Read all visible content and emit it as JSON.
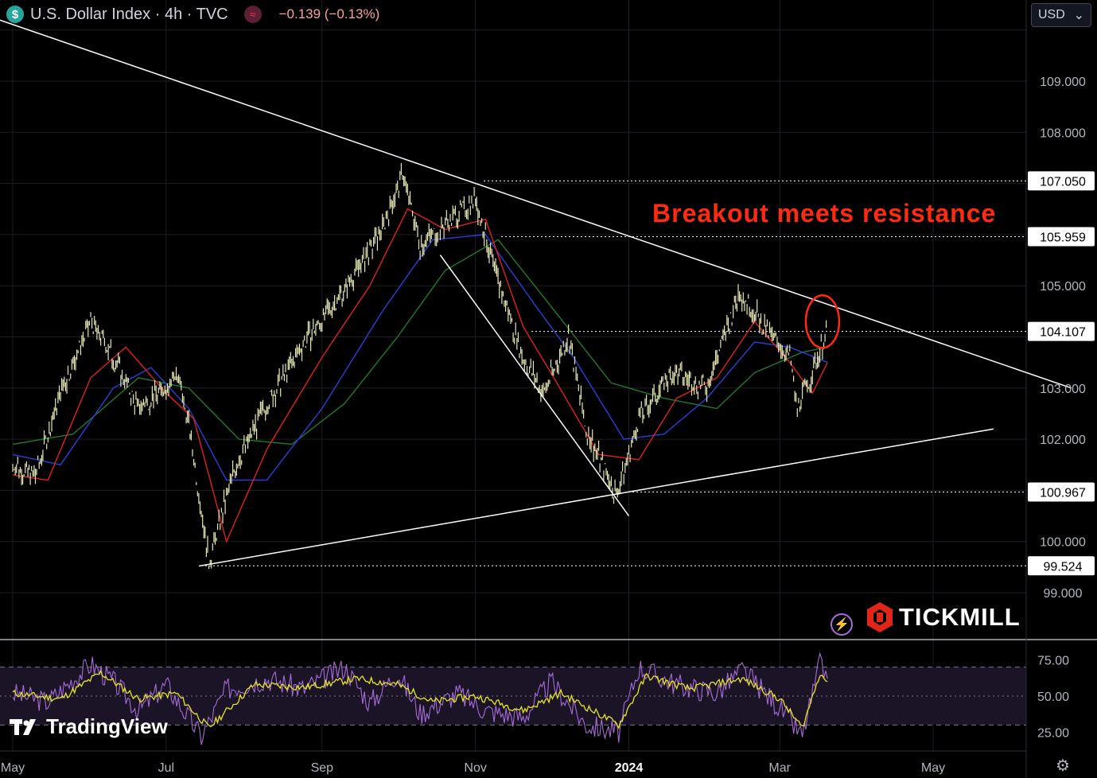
{
  "header": {
    "title": "U.S. Dollar Index · 4h · TVC",
    "currency_icon": "$",
    "indicator_icon": "≈",
    "change": "−0.139 (−0.13%)",
    "currency_select": "USD"
  },
  "annotation": "Breakout meets resistance",
  "brand": {
    "name": "TICKMILL",
    "logo": "tickmill-logo-icon"
  },
  "watermark": "TradingView",
  "colors": {
    "background": "#000000",
    "price_candles": "#e6e8b0",
    "ma_fast": "#e02020",
    "ma_mid": "#2a3fd8",
    "ma_slow": "#1f7a2a",
    "trendline": "#ffffff",
    "rsi": "#a56bd6",
    "rsi_signal": "#e6e61a",
    "annotation": "#ff2a0f",
    "circle": "#ff2a0f"
  },
  "chart_data": {
    "type": "line",
    "x_tick_labels": [
      "May",
      "Jul",
      "Sep",
      "Nov",
      "2024",
      "Mar",
      "May"
    ],
    "y_tick_labels": [
      "109.000",
      "108.000",
      "105.000",
      "103.000",
      "102.000",
      "100.000",
      "99.000"
    ],
    "price_labels": [
      "107.050",
      "105.959",
      "104.107",
      "100.967",
      "99.524"
    ],
    "ylim": [
      98.2,
      110.5
    ],
    "rsi_tick_labels": [
      "75.00",
      "50.00",
      "25.00"
    ],
    "rsi_ylim": [
      12,
      88
    ],
    "series": [
      {
        "kind": "price",
        "points": [
          [
            "2023-05-01",
            101.5
          ],
          [
            "2023-05-10",
            101.3
          ],
          [
            "2023-05-20",
            102.9
          ],
          [
            "2023-06-01",
            104.3
          ],
          [
            "2023-06-10",
            103.6
          ],
          [
            "2023-06-20",
            102.6
          ],
          [
            "2023-06-30",
            103.0
          ],
          [
            "2023-07-05",
            103.3
          ],
          [
            "2023-07-10",
            102.3
          ],
          [
            "2023-07-18",
            99.6
          ],
          [
            "2023-07-28",
            101.4
          ],
          [
            "2023-08-08",
            102.5
          ],
          [
            "2023-08-25",
            103.9
          ],
          [
            "2023-09-05",
            104.6
          ],
          [
            "2023-09-15",
            105.3
          ],
          [
            "2023-09-25",
            106.1
          ],
          [
            "2023-10-03",
            107.2
          ],
          [
            "2023-10-10",
            105.8
          ],
          [
            "2023-10-20",
            106.2
          ],
          [
            "2023-11-01",
            106.7
          ],
          [
            "2023-11-08",
            105.4
          ],
          [
            "2023-11-20",
            103.6
          ],
          [
            "2023-11-28",
            102.9
          ],
          [
            "2023-12-08",
            104.0
          ],
          [
            "2023-12-15",
            102.2
          ],
          [
            "2023-12-27",
            100.9
          ],
          [
            "2024-01-05",
            102.4
          ],
          [
            "2024-01-18",
            103.3
          ],
          [
            "2024-02-01",
            103.0
          ],
          [
            "2024-02-14",
            104.9
          ],
          [
            "2024-02-25",
            104.1
          ],
          [
            "2024-03-05",
            103.6
          ],
          [
            "2024-03-08",
            102.6
          ],
          [
            "2024-03-14",
            103.3
          ],
          [
            "2024-03-20",
            104.1
          ]
        ]
      },
      {
        "kind": "ma_fast",
        "points": [
          [
            "2023-05-01",
            101.3
          ],
          [
            "2023-05-15",
            101.2
          ],
          [
            "2023-06-01",
            103.2
          ],
          [
            "2023-06-15",
            103.8
          ],
          [
            "2023-07-01",
            102.9
          ],
          [
            "2023-07-12",
            102.4
          ],
          [
            "2023-07-25",
            100.0
          ],
          [
            "2023-08-10",
            101.8
          ],
          [
            "2023-09-01",
            103.6
          ],
          [
            "2023-09-20",
            105.0
          ],
          [
            "2023-10-05",
            106.5
          ],
          [
            "2023-10-20",
            106.1
          ],
          [
            "2023-11-05",
            106.3
          ],
          [
            "2023-11-20",
            104.2
          ],
          [
            "2023-12-01",
            103.3
          ],
          [
            "2023-12-20",
            101.7
          ],
          [
            "2024-01-05",
            101.6
          ],
          [
            "2024-01-20",
            102.8
          ],
          [
            "2024-02-05",
            103.2
          ],
          [
            "2024-02-20",
            104.3
          ],
          [
            "2024-03-05",
            103.5
          ],
          [
            "2024-03-14",
            102.9
          ],
          [
            "2024-03-20",
            103.5
          ]
        ]
      },
      {
        "kind": "ma_mid",
        "points": [
          [
            "2023-05-01",
            101.7
          ],
          [
            "2023-05-20",
            101.5
          ],
          [
            "2023-06-10",
            103.0
          ],
          [
            "2023-06-25",
            103.4
          ],
          [
            "2023-07-10",
            102.6
          ],
          [
            "2023-07-25",
            101.2
          ],
          [
            "2023-08-10",
            101.2
          ],
          [
            "2023-09-01",
            102.6
          ],
          [
            "2023-09-25",
            104.5
          ],
          [
            "2023-10-15",
            105.9
          ],
          [
            "2023-11-05",
            106.0
          ],
          [
            "2023-11-25",
            104.6
          ],
          [
            "2023-12-10",
            103.6
          ],
          [
            "2023-12-30",
            102.0
          ],
          [
            "2024-01-15",
            102.1
          ],
          [
            "2024-02-01",
            102.8
          ],
          [
            "2024-02-20",
            103.9
          ],
          [
            "2024-03-05",
            103.8
          ],
          [
            "2024-03-20",
            103.5
          ]
        ]
      },
      {
        "kind": "ma_slow",
        "points": [
          [
            "2023-05-01",
            101.9
          ],
          [
            "2023-05-25",
            102.1
          ],
          [
            "2023-06-20",
            103.2
          ],
          [
            "2023-07-10",
            103.0
          ],
          [
            "2023-07-30",
            102.0
          ],
          [
            "2023-08-20",
            101.9
          ],
          [
            "2023-09-10",
            102.7
          ],
          [
            "2023-10-01",
            104.0
          ],
          [
            "2023-10-20",
            105.3
          ],
          [
            "2023-11-10",
            105.9
          ],
          [
            "2023-12-01",
            104.6
          ],
          [
            "2023-12-25",
            103.1
          ],
          [
            "2024-01-15",
            102.8
          ],
          [
            "2024-02-05",
            102.6
          ],
          [
            "2024-02-20",
            103.3
          ],
          [
            "2024-03-10",
            103.7
          ],
          [
            "2024-03-20",
            103.8
          ]
        ]
      },
      {
        "kind": "rsi",
        "points": [
          [
            "2023-05-01",
            52
          ],
          [
            "2023-05-15",
            46
          ],
          [
            "2023-06-01",
            72
          ],
          [
            "2023-06-10",
            60
          ],
          [
            "2023-06-20",
            40
          ],
          [
            "2023-07-01",
            58
          ],
          [
            "2023-07-15",
            22
          ],
          [
            "2023-07-25",
            55
          ],
          [
            "2023-08-10",
            62
          ],
          [
            "2023-08-25",
            55
          ],
          [
            "2023-09-10",
            70
          ],
          [
            "2023-09-20",
            45
          ],
          [
            "2023-10-01",
            66
          ],
          [
            "2023-10-10",
            38
          ],
          [
            "2023-10-25",
            52
          ],
          [
            "2023-11-05",
            40
          ],
          [
            "2023-11-20",
            35
          ],
          [
            "2023-12-01",
            60
          ],
          [
            "2023-12-15",
            30
          ],
          [
            "2023-12-28",
            25
          ],
          [
            "2024-01-05",
            70
          ],
          [
            "2024-01-20",
            58
          ],
          [
            "2024-02-05",
            52
          ],
          [
            "2024-02-15",
            68
          ],
          [
            "2024-03-01",
            42
          ],
          [
            "2024-03-10",
            22
          ],
          [
            "2024-03-17",
            72
          ],
          [
            "2024-03-20",
            62
          ]
        ]
      },
      {
        "kind": "rsi_signal",
        "points": [
          [
            "2023-05-01",
            52
          ],
          [
            "2023-05-20",
            48
          ],
          [
            "2023-06-05",
            66
          ],
          [
            "2023-06-20",
            48
          ],
          [
            "2023-07-05",
            52
          ],
          [
            "2023-07-18",
            28
          ],
          [
            "2023-08-05",
            58
          ],
          [
            "2023-08-25",
            56
          ],
          [
            "2023-09-15",
            62
          ],
          [
            "2023-10-01",
            58
          ],
          [
            "2023-10-15",
            46
          ],
          [
            "2023-11-01",
            50
          ],
          [
            "2023-11-20",
            40
          ],
          [
            "2023-12-05",
            52
          ],
          [
            "2023-12-28",
            30
          ],
          [
            "2024-01-08",
            64
          ],
          [
            "2024-01-25",
            55
          ],
          [
            "2024-02-15",
            62
          ],
          [
            "2024-03-01",
            48
          ],
          [
            "2024-03-10",
            28
          ],
          [
            "2024-03-17",
            66
          ],
          [
            "2024-03-20",
            60
          ]
        ]
      }
    ],
    "trendlines": [
      {
        "from": [
          "2023-03-15",
          110.9
        ],
        "to": [
          "2024-06-25",
          103.0
        ]
      },
      {
        "from": [
          "2023-07-14",
          99.52
        ],
        "to": [
          "2024-05-25",
          102.2
        ]
      },
      {
        "from": [
          "2023-10-18",
          105.6
        ],
        "to": [
          "2024-01-01",
          100.5
        ]
      }
    ],
    "horizontal_levels": [
      107.05,
      105.959,
      104.107,
      100.967,
      99.524
    ],
    "highlight_circle": [
      "2024-03-18",
      104.3
    ],
    "rsi_bands": [
      70,
      50,
      30
    ]
  }
}
